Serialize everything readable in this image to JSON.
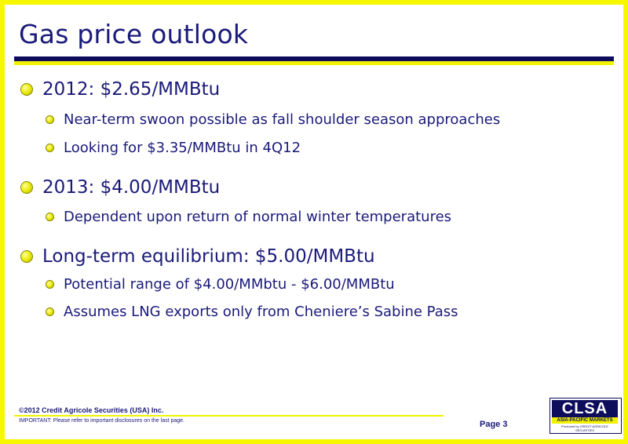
{
  "slide": {
    "title": "Gas price outlook",
    "sections": [
      {
        "heading": "2012: $2.65/MMBtu",
        "items": [
          "Near-term swoon possible as fall shoulder season approaches",
          "Looking for $3.35/MMBtu in 4Q12"
        ]
      },
      {
        "heading": "2013: $4.00/MMBtu",
        "items": [
          "Dependent upon return of normal winter temperatures"
        ]
      },
      {
        "heading": "Long-term equilibrium: $5.00/MMBtu",
        "items": [
          "Potential range of $4.00/MMbtu - $6.00/MMBtu",
          "Assumes LNG exports only from Cheniere’s Sabine Pass"
        ]
      }
    ]
  },
  "footer": {
    "copyright": "©2012 Credit Agricole Securities (USA) Inc.",
    "important": "IMPORTANT: Please refer to important disclosures on the last page.",
    "page": "Page 3"
  },
  "logo": {
    "wordmark": "CLSA",
    "tagline": "ASIA-PACIFIC MARKETS",
    "produced_by": "Produced by CREDIT AGRICOLE SECURITIES"
  },
  "colors": {
    "navy": "#1a1a7a",
    "yellow": "#f2f200",
    "border": "#f7f700"
  }
}
